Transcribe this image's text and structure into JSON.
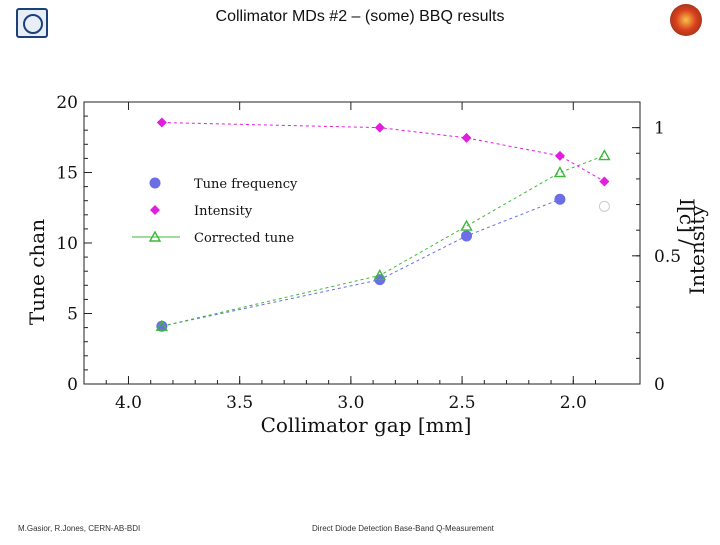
{
  "slide": {
    "title": "Collimator MDs #2 – (some) BBQ results",
    "footer_left": "M.Gasior, R.Jones,  CERN-AB-BDI",
    "footer_center": "Direct Diode Detection Base-Band Q-Measurement"
  },
  "logos": {
    "left": "cern-logo-icon",
    "right": "lhc-logo-icon"
  },
  "chart_data": {
    "type": "line",
    "xlabel": "Collimator gap  [mm]",
    "ylabel": "Tune chan",
    "y2label": "Intensity",
    "y2label_prefix": "I[c] /",
    "xlim": [
      4.2,
      1.7
    ],
    "x_reversed": true,
    "ylim": [
      0,
      20
    ],
    "y2lim": [
      0,
      1.1
    ],
    "xticks": [
      "4.0",
      "3.5",
      "3.0",
      "2.5",
      "2.0"
    ],
    "yticks": [
      "0",
      "5",
      "10",
      "15",
      "20"
    ],
    "y2ticks": [
      "0",
      "0.5",
      "1"
    ],
    "legend_position": "upper-left",
    "series": [
      {
        "name": "Tune frequency",
        "axis": "left",
        "marker": "circle",
        "color": "#6b6ee6",
        "x": [
          3.85,
          2.87,
          2.48,
          2.06,
          1.86
        ],
        "y": [
          4.1,
          7.4,
          10.5,
          13.1,
          12.6
        ]
      },
      {
        "name": "Intensity",
        "axis": "right",
        "marker": "diamond",
        "color": "#e01ee0",
        "x": [
          3.85,
          2.87,
          2.48,
          2.06,
          1.86
        ],
        "y": [
          1.02,
          1.0,
          0.96,
          0.89,
          0.79
        ]
      },
      {
        "name": "Corrected tune",
        "axis": "left",
        "marker": "triangle",
        "color": "#3db83d",
        "x": [
          3.85,
          2.87,
          2.48,
          2.06,
          1.86
        ],
        "y": [
          4.1,
          7.7,
          11.2,
          15.0,
          16.2
        ]
      }
    ]
  }
}
